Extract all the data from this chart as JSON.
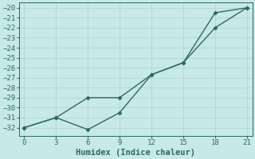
{
  "line1_x": [
    0,
    3,
    6,
    9,
    12,
    15,
    18,
    21
  ],
  "line1_y": [
    -32,
    -31,
    -29,
    -29,
    -26.7,
    -25.5,
    -20.5,
    -20
  ],
  "line2_x": [
    0,
    3,
    6,
    9,
    12,
    15,
    18,
    21
  ],
  "line2_y": [
    -32,
    -31,
    -32.2,
    -30.5,
    -26.7,
    -25.5,
    -22,
    -20
  ],
  "line_color": "#2a6b5e",
  "bg_color": "#c8eae4",
  "grid_color": "#b0d8d0",
  "xlabel": "Humidex (Indice chaleur)",
  "xlim": [
    -0.5,
    21.5
  ],
  "ylim": [
    -32.8,
    -19.5
  ],
  "xticks": [
    0,
    3,
    6,
    9,
    12,
    15,
    18,
    21
  ],
  "yticks": [
    -20,
    -21,
    -22,
    -23,
    -24,
    -25,
    -26,
    -27,
    -28,
    -29,
    -30,
    -31,
    -32
  ],
  "tick_fontsize": 6.5,
  "xlabel_fontsize": 7.5,
  "marker": "D",
  "markersize": 2.5,
  "linewidth": 1.0
}
